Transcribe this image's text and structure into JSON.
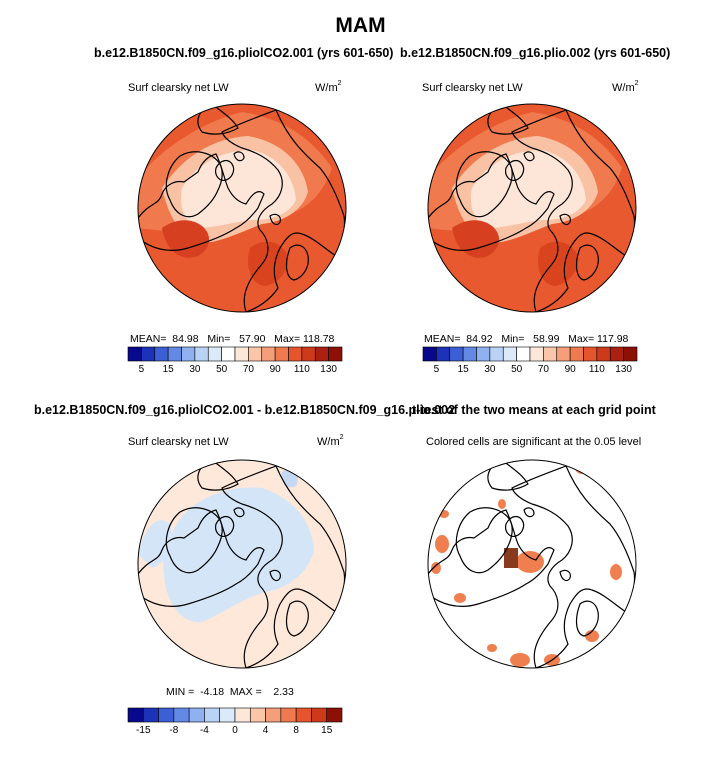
{
  "title": "MAM",
  "colors": {
    "ocean_warm_high": "#e8562c",
    "ocean_warm_mid": "#f0754a",
    "ice_low": "#fde5d6",
    "ice_mid": "#f9c3a6",
    "diff_bg": "#fde8d9",
    "diff_neg": "#d4e5f8",
    "sig": "#f07f50",
    "coast": "#000000"
  },
  "panels": [
    {
      "title": "b.e12.B1850CN.f09_g16.pliolCO2.001 (yrs 601-650)",
      "subtitle": "Surf clearsky net LW",
      "units_main": "W/m",
      "units_sup": "2",
      "stats_text": "MEAN=  84.98   Min=   57.90   Max= 118.78"
    },
    {
      "title": "b.e12.B1850CN.f09_g16.plio.002 (yrs 601-650)",
      "subtitle": "Surf clearsky net LW",
      "units_main": "W/m",
      "units_sup": "2",
      "stats_text": "MEAN=  84.92   Min=   58.99   Max= 117.98"
    },
    {
      "title": "b.e12.B1850CN.f09_g16.pliolCO2.001 - b.e12.B1850CN.f09_g16.plio.002",
      "subtitle": "Surf clearsky net LW",
      "units_main": "W/m",
      "units_sup": "2",
      "stats_text": "MIN =  -4.18  MAX =    2.33"
    },
    {
      "title": "t-test of the two means at each grid point",
      "subtitle": "Colored cells are significant at the 0.05 level"
    }
  ],
  "chart_data": [
    {
      "type": "heatmap",
      "projection": "north-polar-stereographic",
      "field": "Surf clearsky net LW",
      "mean": 84.98,
      "min": 57.9,
      "max": 118.78,
      "colorbar": {
        "levels": [
          5,
          10,
          15,
          20,
          30,
          40,
          50,
          60,
          70,
          80,
          90,
          100,
          110,
          120,
          130
        ],
        "tick_labels": [
          "5",
          "15",
          "30",
          "50",
          "70",
          "90",
          "110",
          "130"
        ],
        "colors": [
          "#08088c",
          "#1c32b8",
          "#3d5fd6",
          "#6389e4",
          "#8fb1ef",
          "#b9d2f6",
          "#dbe9f9",
          "#ffffff",
          "#fde7d9",
          "#fac6aa",
          "#f59f7a",
          "#ef7a50",
          "#e4552e",
          "#cd3a1b",
          "#ab2010",
          "#8c1005"
        ]
      }
    },
    {
      "type": "heatmap",
      "projection": "north-polar-stereographic",
      "field": "Surf clearsky net LW",
      "mean": 84.92,
      "min": 58.99,
      "max": 117.98,
      "colorbar": {
        "levels": [
          5,
          10,
          15,
          20,
          30,
          40,
          50,
          60,
          70,
          80,
          90,
          100,
          110,
          120,
          130
        ],
        "tick_labels": [
          "5",
          "15",
          "30",
          "50",
          "70",
          "90",
          "110",
          "130"
        ],
        "colors": [
          "#08088c",
          "#1c32b8",
          "#3d5fd6",
          "#6389e4",
          "#8fb1ef",
          "#b9d2f6",
          "#dbe9f9",
          "#ffffff",
          "#fde7d9",
          "#fac6aa",
          "#f59f7a",
          "#ef7a50",
          "#e4552e",
          "#cd3a1b",
          "#ab2010",
          "#8c1005"
        ]
      }
    },
    {
      "type": "heatmap",
      "projection": "north-polar-stereographic",
      "field": "difference",
      "min": -4.18,
      "max": 2.33,
      "colorbar": {
        "levels": [
          -15,
          -12,
          -8,
          -6,
          -4,
          -2,
          0,
          2,
          4,
          6,
          8,
          12,
          15
        ],
        "tick_labels": [
          "-15",
          "-8",
          "-4",
          "0",
          "4",
          "8",
          "15"
        ],
        "colors": [
          "#08088c",
          "#1c32b8",
          "#3d5fd6",
          "#6389e4",
          "#8fb1ef",
          "#b9d2f6",
          "#dbe9f9",
          "#fde7d9",
          "#fac6aa",
          "#f59f7a",
          "#ef7a50",
          "#e4552e",
          "#cd3a1b",
          "#8c1005"
        ]
      }
    },
    {
      "type": "heatmap",
      "projection": "north-polar-stereographic",
      "field": "significance mask (p < 0.05)"
    }
  ]
}
